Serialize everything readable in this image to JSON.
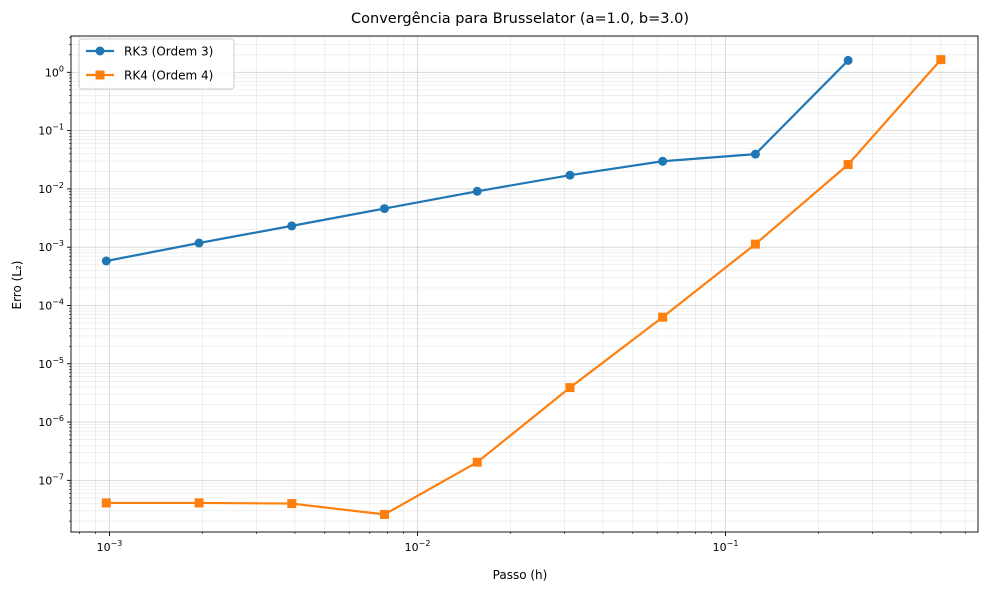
{
  "chart_data": {
    "type": "line",
    "title": "Convergência para Brusselator (a=1.0, b=3.0)",
    "xlabel": "Passo (h)",
    "ylabel": "Erro (L₂)",
    "xscale": "log",
    "yscale": "log",
    "xlim": [
      0.00075,
      0.66
    ],
    "ylim": [
      1.3e-08,
      4.2
    ],
    "grid": "major and minor",
    "legend_position": "top-left",
    "x_ticks": [
      {
        "value": 0.001,
        "base": "10",
        "exp": "−3"
      },
      {
        "value": 0.01,
        "base": "10",
        "exp": "−2"
      },
      {
        "value": 0.1,
        "base": "10",
        "exp": "−1"
      }
    ],
    "y_ticks": [
      {
        "value": 1e-07,
        "base": "10",
        "exp": "−7"
      },
      {
        "value": 1e-06,
        "base": "10",
        "exp": "−6"
      },
      {
        "value": 1e-05,
        "base": "10",
        "exp": "−5"
      },
      {
        "value": 0.0001,
        "base": "10",
        "exp": "−4"
      },
      {
        "value": 0.001,
        "base": "10",
        "exp": "−3"
      },
      {
        "value": 0.01,
        "base": "10",
        "exp": "−2"
      },
      {
        "value": 0.1,
        "base": "10",
        "exp": "−1"
      },
      {
        "value": 1,
        "base": "10",
        "exp": "0"
      }
    ],
    "series": [
      {
        "name": "RK3 (Ordem 3)",
        "color": "#1f77b4",
        "marker": "circle",
        "x": [
          0.0009765625,
          0.001953125,
          0.00390625,
          0.0078125,
          0.015625,
          0.03125,
          0.0625,
          0.125,
          0.25
        ],
        "y": [
          0.00058,
          0.00118,
          0.00232,
          0.0046,
          0.0091,
          0.0172,
          0.0298,
          0.0395,
          1.6
        ]
      },
      {
        "name": "RK4 (Ordem 4)",
        "color": "#ff7f0e",
        "marker": "square",
        "x": [
          0.0009765625,
          0.001953125,
          0.00390625,
          0.0078125,
          0.015625,
          0.03125,
          0.0625,
          0.125,
          0.25,
          0.5
        ],
        "y": [
          4.1e-08,
          4.1e-08,
          4e-08,
          2.6e-08,
          2.05e-07,
          3.9e-06,
          6.3e-05,
          0.00113,
          0.0262,
          1.65
        ]
      }
    ]
  }
}
